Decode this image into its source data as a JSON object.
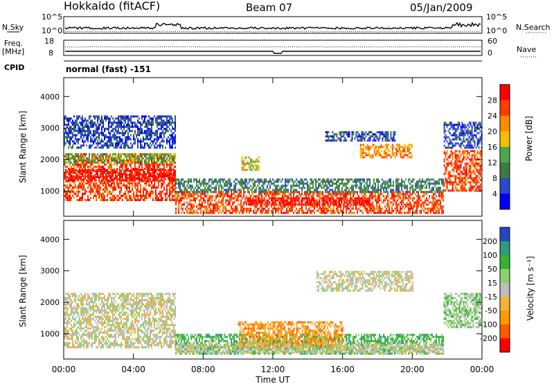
{
  "header": {
    "station": "Hokkaido (fitACF)",
    "beam": "Beam 07",
    "date": "05/Jan/2009"
  },
  "top_panels": {
    "nsky_label": "N.Sky",
    "nsearch_label": "N.Search",
    "count_ticks": [
      "10^5",
      "10^0"
    ],
    "freq_label": "Freq.",
    "freq_unit": "[MHz]",
    "freq_ticks": [
      "18",
      "8"
    ],
    "nave_label": "Nave",
    "nave_ticks": [
      "60",
      "0"
    ],
    "cpid_label": "CPID",
    "cpid_value": "normal (fast) -151"
  },
  "chart_data": [
    {
      "type": "heatmap",
      "name": "power",
      "ylabel": "Slant Range [km]",
      "ylim": [
        200,
        4600
      ],
      "yticks": [
        1000,
        2000,
        3000,
        4000
      ],
      "xlim": [
        0,
        24
      ],
      "colorbar": {
        "label": "Power [dB]",
        "ticks": [
          "28",
          "24",
          "20",
          "16",
          "12",
          "8",
          "4"
        ],
        "colors": [
          "#0000ff",
          "#2b48c8",
          "#3f7a3f",
          "#4aa84a",
          "#f2c200",
          "#ff8c00",
          "#ff3b00",
          "#ff0000"
        ]
      },
      "regions": [
        {
          "t0": 0.0,
          "t1": 6.4,
          "r0": 700,
          "r1": 2200,
          "level": 6
        },
        {
          "t0": 0.0,
          "t1": 6.4,
          "r0": 1350,
          "r1": 1700,
          "level": 7
        },
        {
          "t0": 0.0,
          "t1": 6.4,
          "r0": 1900,
          "r1": 2200,
          "level": 3
        },
        {
          "t0": 0.0,
          "t1": 6.4,
          "r0": 2400,
          "r1": 3400,
          "level": 1
        },
        {
          "t0": 6.4,
          "t1": 21.8,
          "r0": 300,
          "r1": 1000,
          "level": 6
        },
        {
          "t0": 10.5,
          "t1": 17.5,
          "r0": 550,
          "r1": 800,
          "level": 7
        },
        {
          "t0": 6.4,
          "t1": 21.8,
          "r0": 1000,
          "r1": 1400,
          "level": 2
        },
        {
          "t0": 15.0,
          "t1": 19.0,
          "r0": 2600,
          "r1": 2900,
          "level": 1
        },
        {
          "t0": 17.0,
          "t1": 20.0,
          "r0": 2100,
          "r1": 2500,
          "level": 5
        },
        {
          "t0": 10.2,
          "t1": 11.2,
          "r0": 1700,
          "r1": 2100,
          "level": 4
        },
        {
          "t0": 21.8,
          "t1": 24.0,
          "r0": 1000,
          "r1": 2300,
          "level": 6
        },
        {
          "t0": 21.8,
          "t1": 24.0,
          "r0": 2400,
          "r1": 3200,
          "level": 1
        }
      ]
    },
    {
      "type": "heatmap",
      "name": "velocity",
      "ylabel": "Slant Range [km]",
      "ylim": [
        200,
        4600
      ],
      "yticks": [
        1000,
        2000,
        3000,
        4000
      ],
      "xlim": [
        0,
        24
      ],
      "xticks": [
        "00:00",
        "04:00",
        "08:00",
        "12:00",
        "16:00",
        "20:00",
        "00:00"
      ],
      "xlabel": "Time UT",
      "colorbar": {
        "label": "Velocity [m s⁻¹]",
        "ticks": [
          "200",
          "100",
          "50",
          "15",
          "-15",
          "-50",
          "-100",
          "-200"
        ],
        "colors": [
          "#ff0000",
          "#ff5a00",
          "#ff9900",
          "#f2b33a",
          "#bdbdbd",
          "#8ad16b",
          "#36b036",
          "#2e9a7a",
          "#2448c0"
        ]
      },
      "regions": [
        {
          "t0": 0.0,
          "t1": 6.4,
          "r0": 1200,
          "r1": 2300,
          "level": 4
        },
        {
          "t0": 0.0,
          "t1": 6.4,
          "r0": 600,
          "r1": 1200,
          "level": 4
        },
        {
          "t0": 6.4,
          "t1": 21.8,
          "r0": 400,
          "r1": 1000,
          "level": 6
        },
        {
          "t0": 10.0,
          "t1": 16.0,
          "r0": 600,
          "r1": 1400,
          "level": 2
        },
        {
          "t0": 6.4,
          "t1": 21.8,
          "r0": 420,
          "r1": 700,
          "level": 4
        },
        {
          "t0": 14.5,
          "t1": 20.0,
          "r0": 2400,
          "r1": 3000,
          "level": 4
        },
        {
          "t0": 21.8,
          "t1": 24.0,
          "r0": 1200,
          "r1": 2300,
          "level": 5
        }
      ]
    }
  ]
}
